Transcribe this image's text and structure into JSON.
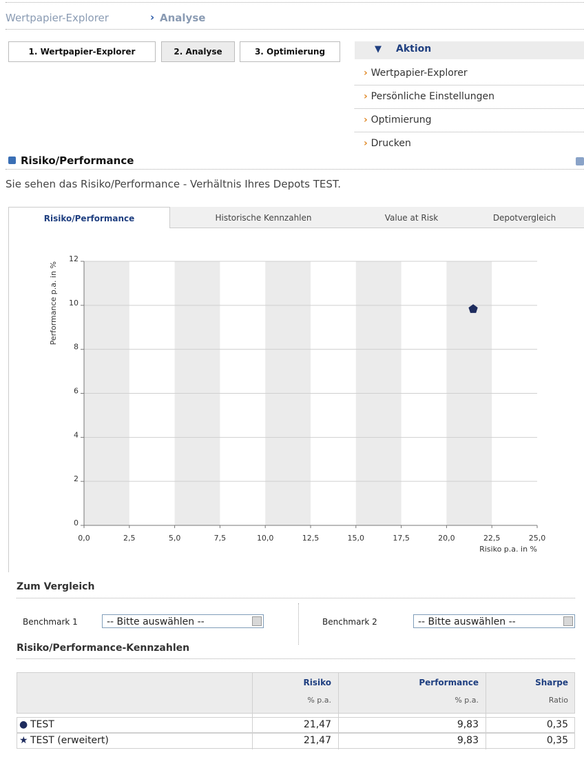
{
  "breadcrumb": {
    "items": [
      "Wertpapier-Explorer",
      "Analyse"
    ]
  },
  "steps": [
    "1. Wertpapier-Explorer",
    "2. Analyse",
    "3. Optimierung"
  ],
  "aktion": {
    "title": "Aktion",
    "items": [
      "Wertpapier-Explorer",
      "Persönliche Einstellungen",
      "Optimierung",
      "Drucken"
    ]
  },
  "section": {
    "title": "Risiko/Performance",
    "description": "Sie sehen das Risiko/Performance - Verhältnis Ihres Depots TEST."
  },
  "tabs": [
    "Risiko/Performance",
    "Historische Kennzahlen",
    "Value at Risk",
    "Depotvergleich"
  ],
  "chart_data": {
    "type": "scatter",
    "xlabel": "Risiko p.a. in %",
    "ylabel": "Performance p.a. in %",
    "x": [
      21.47
    ],
    "values": [
      9.83
    ],
    "color": "#1e2c5e",
    "xlim": [
      0,
      25
    ],
    "xticks": [
      {
        "value": 0,
        "label": "0,0"
      },
      {
        "value": 2.5,
        "label": "2,5"
      },
      {
        "value": 5,
        "label": "5,0"
      },
      {
        "value": 7.5,
        "label": "7,5"
      },
      {
        "value": 10,
        "label": "10,0"
      },
      {
        "value": 12.5,
        "label": "12,5"
      },
      {
        "value": 15,
        "label": "15,0"
      },
      {
        "value": 17.5,
        "label": "17,5"
      },
      {
        "value": 20,
        "label": "20,0"
      },
      {
        "value": 22.5,
        "label": "22,5"
      },
      {
        "value": 25,
        "label": "25,0"
      }
    ],
    "ylim": [
      0,
      12
    ],
    "yticks": [
      0,
      2,
      4,
      6,
      8,
      10,
      12
    ],
    "grid": true
  },
  "vergleich": {
    "title": "Zum Vergleich",
    "benchmark1": "Benchmark 1",
    "benchmark2": "Benchmark 2",
    "select1": "-- Bitte auswählen --",
    "select2": "-- Bitte auswählen --"
  },
  "kennzahlen": {
    "title": "Risiko/Performance-Kennzahlen",
    "columns": [
      {
        "title": "Risiko",
        "unit": "% p.a."
      },
      {
        "title": "Performance",
        "unit": "% p.a."
      },
      {
        "title": "Sharpe",
        "unit": "Ratio"
      }
    ],
    "rows": [
      {
        "name": "TEST",
        "values": [
          "21,47",
          "9,83",
          "0,35"
        ]
      },
      {
        "name": "TEST (erweitert)",
        "values": [
          "21,47",
          "9,83",
          "0,35"
        ]
      }
    ]
  }
}
